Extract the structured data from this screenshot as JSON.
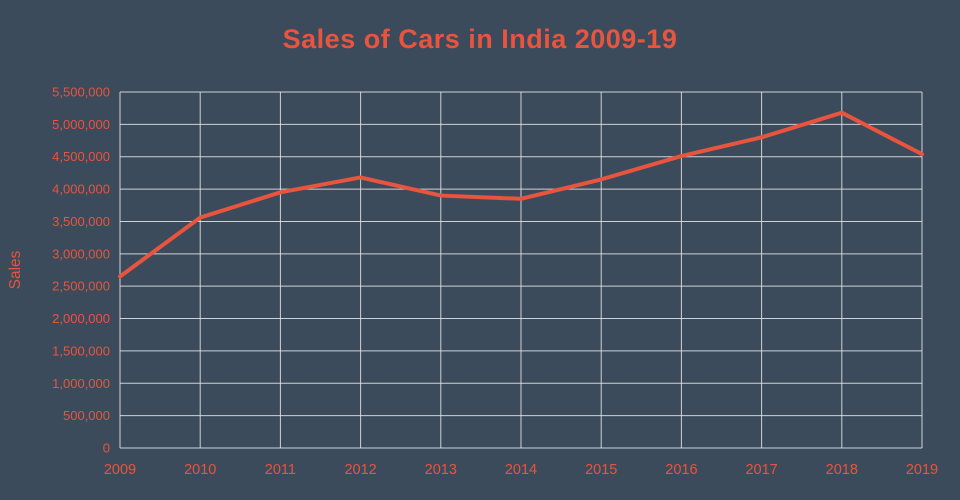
{
  "page": {
    "title": "Sales of Cars in India 2009-19"
  },
  "chart_data": {
    "type": "line",
    "title": "Sales of Cars in India 2009-19",
    "xlabel": "",
    "ylabel": "Sales",
    "categories": [
      "2009",
      "2010",
      "2011",
      "2012",
      "2013",
      "2014",
      "2015",
      "2016",
      "2017",
      "2018",
      "2019"
    ],
    "values": [
      2650000,
      3560000,
      3950000,
      4180000,
      3900000,
      3850000,
      4150000,
      4510000,
      4800000,
      5180000,
      4540000
    ],
    "ylim": [
      0,
      5500000
    ],
    "ytick_step": 500000,
    "grid": true,
    "legend": "none",
    "colors": {
      "background": "#3c4b5c",
      "line": "#e8543d",
      "text": "#e8543d",
      "grid": "#e9e9e9"
    }
  }
}
